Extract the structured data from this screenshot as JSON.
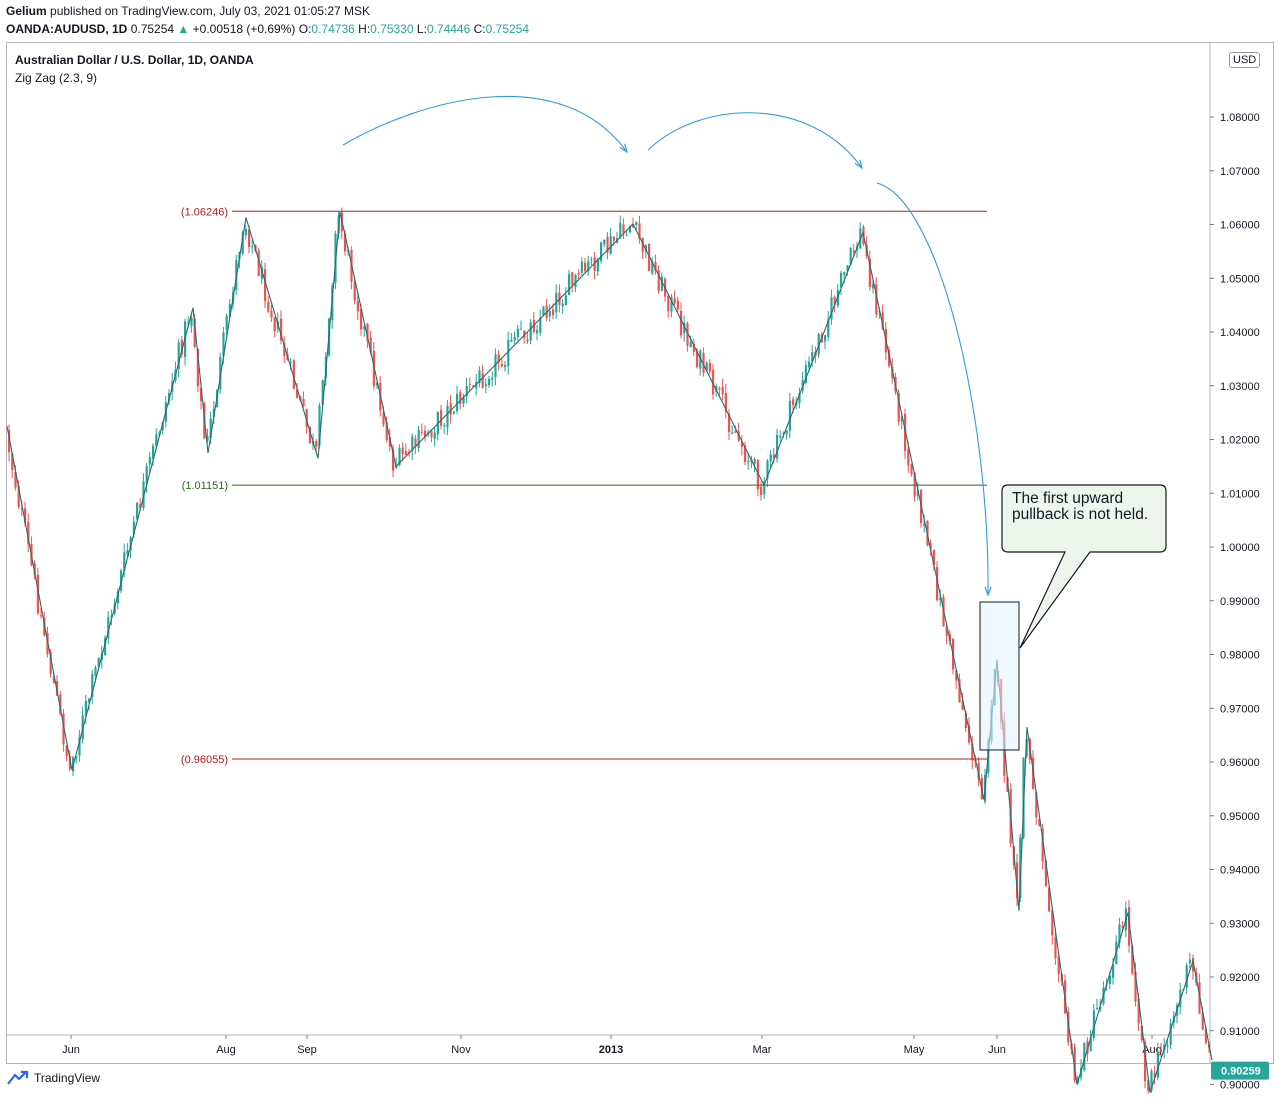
{
  "header": {
    "publisher": "Gelium",
    "published_text": "published on TradingView.com, July 03, 2021 01:05:27 MSK",
    "symbol": "OANDA:AUDUSD, 1D",
    "last": "0.75254",
    "change_arrow": "▲",
    "change": "+0.00518 (+0.69%)",
    "o_label": "O:",
    "o_value": "0.74736",
    "h_label": "H:",
    "h_value": "0.75330",
    "l_label": "L:",
    "l_value": "0.74446",
    "c_label": "C:",
    "c_value": "0.75254"
  },
  "legend": {
    "title": "Australian Dollar / U.S. Dollar, 1D, OANDA",
    "indicator": "Zig Zag (2.3, 9)"
  },
  "currency_button": "USD",
  "footer": {
    "brand": "TradingView",
    "logo_icon": "tradingview-logo-icon"
  },
  "callout": {
    "text": "The first upward pullback is not held."
  },
  "colors": {
    "bull": "#26a69a",
    "bear": "#ef5350",
    "zigzag": "#2b6a6e",
    "resistance": "#b71c1c",
    "support": "#33691e",
    "arrow": "#2f9de0",
    "highlight_fill": "#e3f2fd",
    "callout_fill": "#eef5ec"
  },
  "chart_data": {
    "type": "candlestick",
    "ylim": [
      0.8985,
      1.0845
    ],
    "y_ticks": [
      "1.08000",
      "1.07000",
      "1.06000",
      "1.05000",
      "1.04000",
      "1.03000",
      "1.02000",
      "1.01000",
      "1.00000",
      "0.99000",
      "0.98000",
      "0.97000",
      "0.96000",
      "0.95000",
      "0.94000",
      "0.93000",
      "0.92000",
      "0.91000",
      "0.90000"
    ],
    "x_ticks": [
      "Jun",
      "Aug",
      "Sep",
      "Nov",
      "2013",
      "Mar",
      "May",
      "Jun",
      "Aug"
    ],
    "last_price_label": "0.90259",
    "levels": [
      {
        "label": "(1.06246)",
        "value": 1.06246,
        "kind": "resistance"
      },
      {
        "label": "(1.01151)",
        "value": 1.01151,
        "kind": "support"
      },
      {
        "label": "(0.96055)",
        "value": 0.96055,
        "kind": "resistance"
      }
    ],
    "zigzag": [
      [
        "May 2012",
        1.0225
      ],
      [
        "Jun 2012",
        0.9585
      ],
      [
        "Jul 2012",
        1.0445
      ],
      [
        "Jul 2012",
        1.0175
      ],
      [
        "Aug 2012",
        1.0613
      ],
      [
        "Sep 2012",
        1.0165
      ],
      [
        "Sep 2012",
        1.0623
      ],
      [
        "Oct 2012",
        1.015
      ],
      [
        "Jan 2013",
        1.0601
      ],
      [
        "Mar 2013",
        1.0115
      ],
      [
        "Apr 2013",
        1.0585
      ],
      [
        "May 2013",
        0.953
      ],
      [
        "May 2013",
        0.979
      ],
      [
        "Jun 2013",
        0.9323
      ],
      [
        "Jun 2013",
        0.9665
      ],
      [
        "Jul 2013",
        0.9
      ],
      [
        "Jul 2013",
        0.932
      ],
      [
        "Aug 2013",
        0.8985
      ],
      [
        "Aug 2013",
        0.923
      ],
      [
        "Aug 2013",
        0.9045
      ]
    ]
  }
}
